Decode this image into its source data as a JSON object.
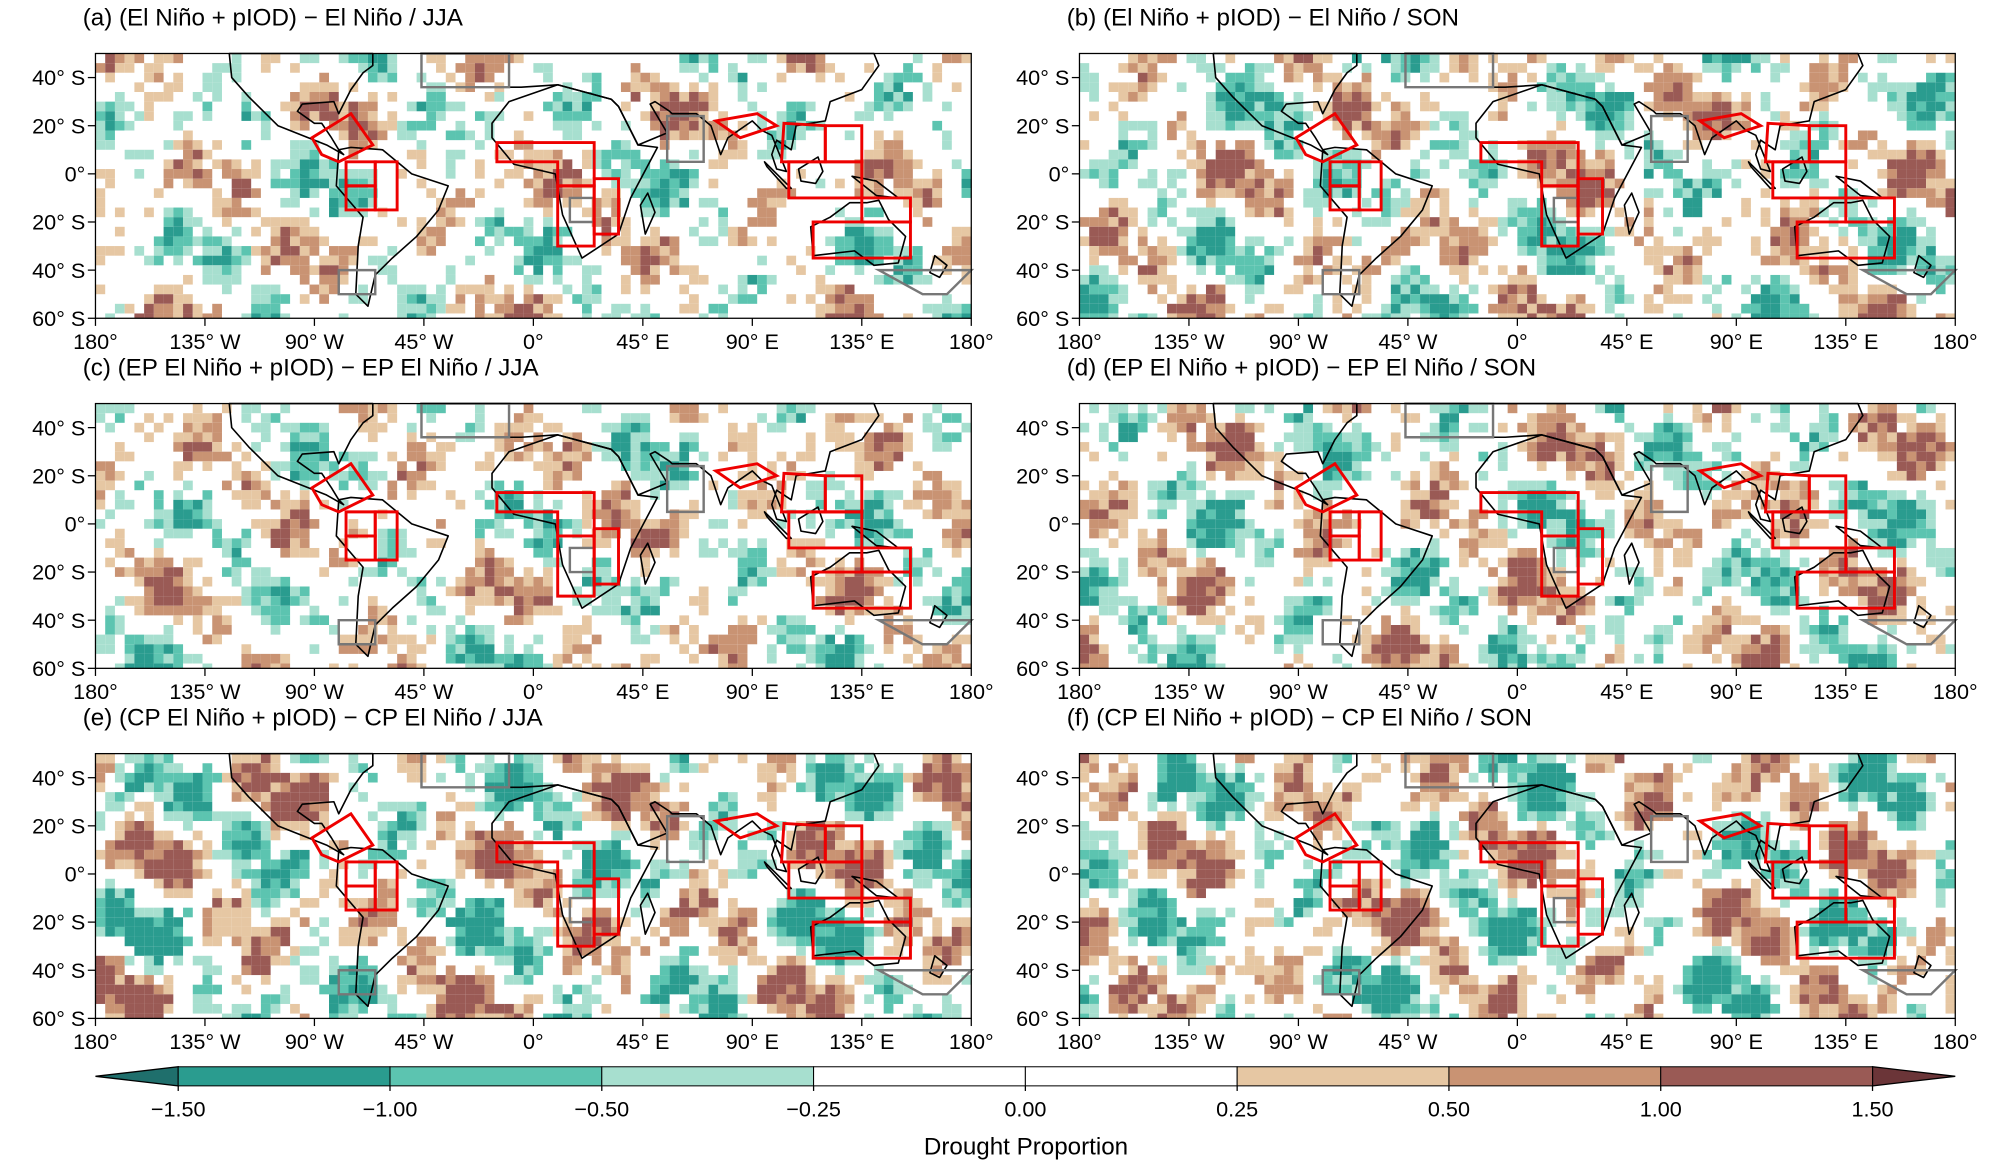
{
  "panels": [
    {
      "title": "(a) (El Niño + pIOD) − El Niño / JJA"
    },
    {
      "title": "(b) (El Niño + pIOD) − El Niño / SON"
    },
    {
      "title": "(c) (EP El Niño + pIOD) − EP El Niño / JJA"
    },
    {
      "title": "(d) (EP El Niño + pIOD) − EP El Niño / SON"
    },
    {
      "title": "(e) (CP El Niño + pIOD) − CP El Niño / JJA"
    },
    {
      "title": "(f) (CP El Niño + pIOD) − CP El Niño / SON"
    }
  ],
  "lat_ticks": [
    "40° S",
    "20° S",
    "0°",
    "20° S",
    "40° S",
    "60° S"
  ],
  "lon_ticks": [
    "180°",
    "135° W",
    "90° W",
    "45° W",
    "0°",
    "45° E",
    "90° E",
    "135° E",
    "180°"
  ],
  "colorbar": {
    "title": "Drought Proportion",
    "ticks": [
      {
        "value": -1.5,
        "label": "−1.50"
      },
      {
        "value": -1,
        "label": "−1.00"
      },
      {
        "value": -0.5,
        "label": "−0.50"
      },
      {
        "value": -0.25,
        "label": "−0.25"
      },
      {
        "value": 0,
        "label": "0.00"
      },
      {
        "value": 0.25,
        "label": "0.25"
      },
      {
        "value": 0.5,
        "label": "0.50"
      },
      {
        "value": 1,
        "label": "1.00"
      },
      {
        "value": 1.5,
        "label": "1.50"
      }
    ],
    "colors": [
      "#1f6f6c",
      "#2a9c8f",
      "#5cc4b0",
      "#a7dfcf",
      "#ffffff",
      "#ffffff",
      "#e6c7a3",
      "#c99373",
      "#9a5a55",
      "#6b3538"
    ]
  }
}
